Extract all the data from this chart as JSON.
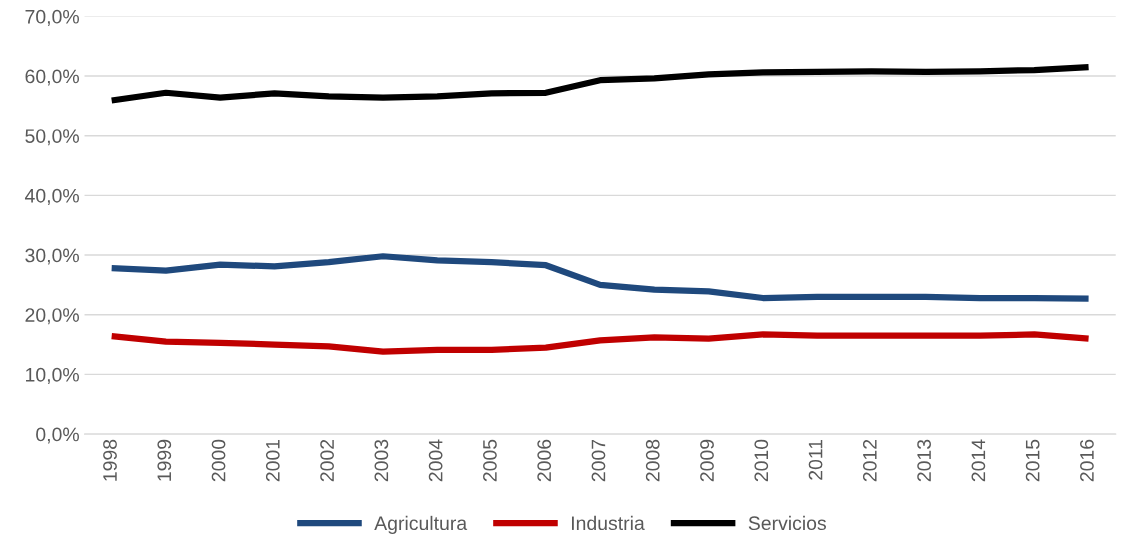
{
  "chart_data": {
    "type": "line",
    "categories": [
      "1998",
      "1999",
      "2000",
      "2001",
      "2002",
      "2003",
      "2004",
      "2005",
      "2006",
      "2007",
      "2008",
      "2009",
      "2010",
      "2011",
      "2012",
      "2013",
      "2014",
      "2015",
      "2016"
    ],
    "series": [
      {
        "name": "Agricultura",
        "color": "#1f497d",
        "values": [
          27.8,
          27.4,
          28.4,
          28.1,
          28.8,
          29.8,
          29.1,
          28.8,
          28.3,
          25.0,
          24.2,
          23.9,
          22.8,
          23.0,
          23.0,
          23.0,
          22.8,
          22.8,
          22.7
        ]
      },
      {
        "name": "Industria",
        "color": "#c00000",
        "values": [
          16.4,
          15.5,
          15.3,
          15.0,
          14.7,
          13.8,
          14.1,
          14.1,
          14.5,
          15.7,
          16.2,
          16.0,
          16.7,
          16.5,
          16.5,
          16.5,
          16.5,
          16.7,
          16.0
        ]
      },
      {
        "name": "Servicios",
        "color": "#000000",
        "values": [
          55.9,
          57.2,
          56.4,
          57.1,
          56.6,
          56.4,
          56.6,
          57.1,
          57.2,
          59.3,
          59.6,
          60.3,
          60.6,
          60.7,
          60.8,
          60.7,
          60.8,
          61.0,
          61.5
        ]
      }
    ],
    "ylim": [
      0,
      70
    ],
    "yticks": [
      {
        "value": 0,
        "label": "0,0%"
      },
      {
        "value": 10,
        "label": "10,0%"
      },
      {
        "value": 20,
        "label": "20,0%"
      },
      {
        "value": 30,
        "label": "30,0%"
      },
      {
        "value": 40,
        "label": "40,0%"
      },
      {
        "value": 50,
        "label": "50,0%"
      },
      {
        "value": 60,
        "label": "60,0%"
      },
      {
        "value": 70,
        "label": "70,0%"
      }
    ],
    "grid": "y",
    "legend": "bottom",
    "marker": "none",
    "line_style": "solid"
  }
}
